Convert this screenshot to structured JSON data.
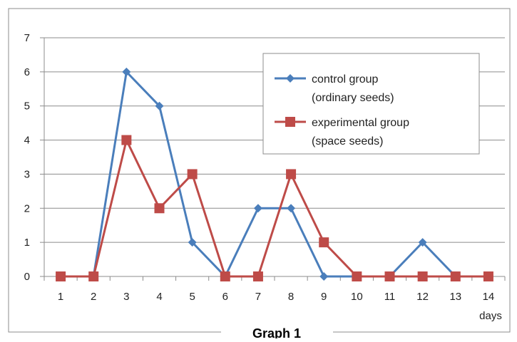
{
  "caption": "Graph 1",
  "colors": {
    "series1": "#4a7ebb",
    "series2": "#be4b48",
    "grid": "#8c8c8c",
    "frame": "#8c8c8c"
  },
  "chart_data": {
    "type": "line",
    "x": [
      1,
      2,
      3,
      4,
      5,
      6,
      7,
      8,
      9,
      10,
      11,
      12,
      13,
      14
    ],
    "xunit": "days",
    "ylim": [
      0,
      7
    ],
    "yticks": [
      0,
      1,
      2,
      3,
      4,
      5,
      6,
      7
    ],
    "grid": true,
    "legend_position": "top-right",
    "series": [
      {
        "name": "control group (ordinary seeds)",
        "legend_lines": [
          "control group",
          "(ordinary seeds)"
        ],
        "color": "#4a7ebb",
        "marker": "diamond",
        "values": [
          0,
          0,
          6,
          5,
          1,
          0,
          2,
          2,
          0,
          0,
          0,
          1,
          0,
          0
        ]
      },
      {
        "name": "experimental group (space seeds)",
        "legend_lines": [
          "experimental group",
          "(space seeds)"
        ],
        "color": "#be4b48",
        "marker": "square",
        "values": [
          0,
          0,
          4,
          2,
          3,
          0,
          0,
          3,
          1,
          0,
          0,
          0,
          0,
          0
        ]
      }
    ]
  }
}
